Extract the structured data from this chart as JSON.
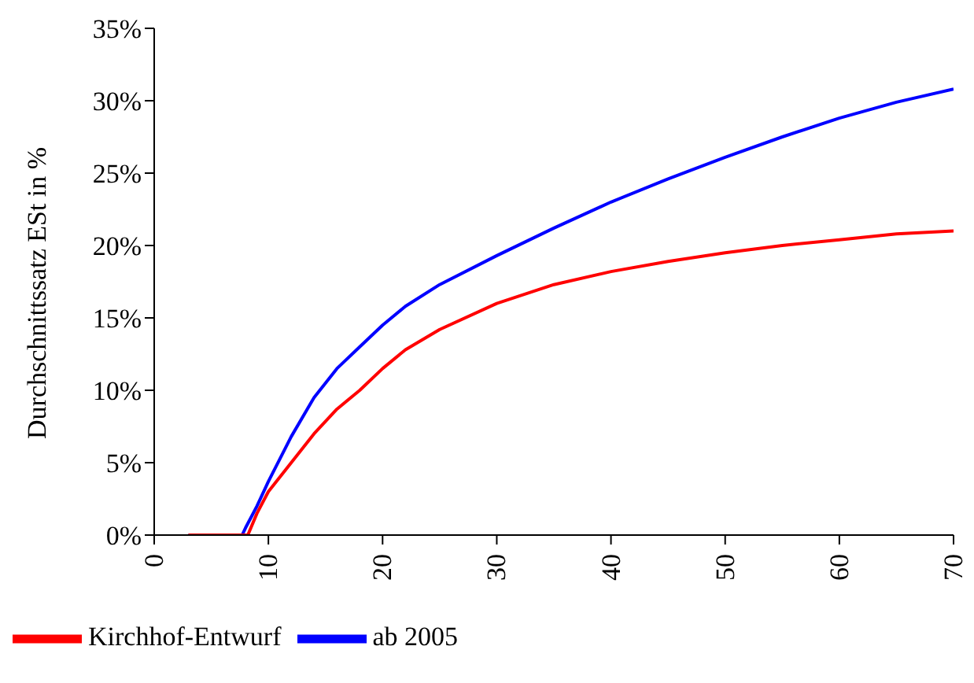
{
  "chart_data": {
    "type": "line",
    "ylabel": "Durchschnittssatz ESt in %",
    "xlim": [
      0,
      70
    ],
    "xticks": [
      0,
      10,
      20,
      30,
      40,
      50,
      60,
      70
    ],
    "ylim": [
      0,
      35
    ],
    "yticks": [
      {
        "value": 0,
        "label": "0%"
      },
      {
        "value": 5,
        "label": "5%"
      },
      {
        "value": 10,
        "label": "10%"
      },
      {
        "value": 15,
        "label": "15%"
      },
      {
        "value": 20,
        "label": "20%"
      },
      {
        "value": 25,
        "label": "25%"
      },
      {
        "value": 30,
        "label": "30%"
      },
      {
        "value": 35,
        "label": "35%"
      }
    ],
    "grid": false,
    "legend": "bottom left",
    "marker": "none",
    "line_style": "solid",
    "series": [
      {
        "name": "ab 2005",
        "color": "#0000ff",
        "x": [
          3,
          7.7,
          8,
          9,
          10,
          12,
          14,
          16,
          18,
          20,
          22,
          25,
          30,
          35,
          40,
          45,
          50,
          55,
          60,
          65,
          70
        ],
        "values": [
          0,
          0,
          0.5,
          2,
          3.7,
          6.8,
          9.5,
          11.5,
          13,
          14.5,
          15.8,
          17.3,
          19.3,
          21.2,
          23,
          24.6,
          26.1,
          27.5,
          28.8,
          29.9,
          30.8
        ]
      },
      {
        "name": "Kirchhof-Entwurf",
        "color": "#ff0000",
        "x": [
          3,
          8.2,
          9,
          10,
          12,
          14,
          16,
          18,
          20,
          22,
          25,
          30,
          35,
          40,
          45,
          50,
          55,
          60,
          65,
          70
        ],
        "values": [
          0,
          0,
          1.5,
          3,
          5,
          7,
          8.7,
          10,
          11.5,
          12.8,
          14.2,
          16,
          17.3,
          18.2,
          18.9,
          19.5,
          20,
          20.4,
          20.8,
          21
        ]
      }
    ]
  }
}
